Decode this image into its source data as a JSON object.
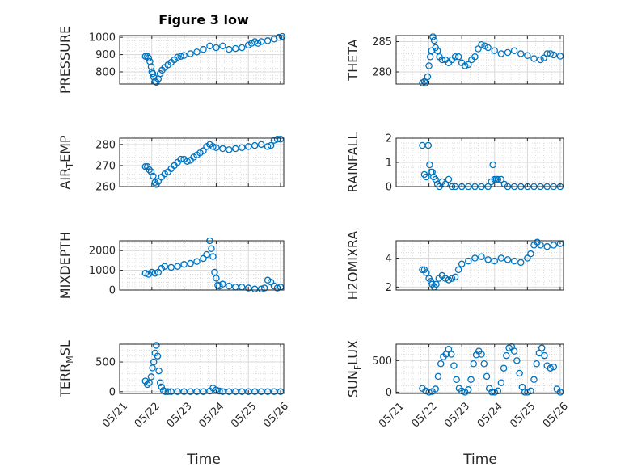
{
  "figure": {
    "title": "Figure 3 low"
  },
  "chart_data": [
    {
      "type": "scatter",
      "title": "Figure 3 low",
      "ylabel": "PRESSURE",
      "ylabel_sub": "",
      "ylim": [
        730,
        1010
      ],
      "yticks": [
        800,
        900,
        1000
      ],
      "ytick_labels": [
        "800",
        "900",
        "1000"
      ],
      "xlim": [
        0,
        5.1
      ],
      "grid": true,
      "x": [
        0.8,
        0.86,
        0.9,
        0.94,
        0.98,
        1.0,
        1.03,
        1.06,
        1.1,
        1.14,
        1.2,
        1.26,
        1.32,
        1.4,
        1.5,
        1.6,
        1.7,
        1.8,
        1.9,
        2.0,
        2.2,
        2.4,
        2.6,
        2.8,
        3.0,
        3.2,
        3.4,
        3.6,
        3.8,
        4.0,
        4.1,
        4.2,
        4.3,
        4.4,
        4.6,
        4.8,
        4.95,
        5.05
      ],
      "y": [
        890,
        890,
        880,
        860,
        830,
        800,
        790,
        770,
        745,
        740,
        760,
        790,
        810,
        825,
        840,
        855,
        870,
        885,
        890,
        895,
        905,
        915,
        930,
        950,
        940,
        950,
        930,
        935,
        940,
        955,
        965,
        975,
        965,
        975,
        980,
        990,
        1000,
        1005
      ]
    },
    {
      "type": "scatter",
      "title": "",
      "ylabel": "THETA",
      "ylabel_sub": "",
      "ylim": [
        278,
        286
      ],
      "yticks": [
        280,
        285
      ],
      "ytick_labels": [
        "280",
        "285"
      ],
      "xlim": [
        0,
        5.1
      ],
      "grid": true,
      "x": [
        0.8,
        0.86,
        0.9,
        0.96,
        1.0,
        1.04,
        1.08,
        1.12,
        1.16,
        1.2,
        1.26,
        1.32,
        1.4,
        1.5,
        1.6,
        1.7,
        1.8,
        1.9,
        2.0,
        2.1,
        2.2,
        2.3,
        2.4,
        2.5,
        2.6,
        2.7,
        2.8,
        3.0,
        3.2,
        3.4,
        3.6,
        3.8,
        4.0,
        4.2,
        4.4,
        4.5,
        4.6,
        4.7,
        4.8,
        5.0
      ],
      "y": [
        278.2,
        278.4,
        278.2,
        279.2,
        281,
        282.5,
        283.5,
        285.8,
        285.2,
        284,
        283.5,
        282.5,
        282,
        282,
        281.5,
        282,
        282.5,
        282.5,
        281.5,
        281,
        281.2,
        282,
        282.5,
        283.8,
        284.5,
        284.3,
        284,
        283.5,
        283,
        283.2,
        283.5,
        283,
        282.7,
        282.2,
        282,
        282.3,
        283,
        283,
        282.8,
        282.6
      ]
    },
    {
      "type": "scatter",
      "title": "",
      "ylabel": "AIR",
      "ylabel_sub": "T",
      "ylabel_suffix": "EMP",
      "ylim": [
        260,
        283
      ],
      "yticks": [
        260,
        270,
        280
      ],
      "ytick_labels": [
        "260",
        "270",
        "280"
      ],
      "xlim": [
        0,
        5.1
      ],
      "grid": true,
      "x": [
        0.8,
        0.86,
        0.92,
        0.98,
        1.04,
        1.1,
        1.14,
        1.2,
        1.3,
        1.4,
        1.5,
        1.6,
        1.7,
        1.8,
        1.9,
        2.0,
        2.1,
        2.2,
        2.3,
        2.4,
        2.5,
        2.6,
        2.7,
        2.8,
        2.9,
        3.0,
        3.2,
        3.4,
        3.6,
        3.8,
        4.0,
        4.2,
        4.4,
        4.6,
        4.7,
        4.8,
        4.9,
        5.0
      ],
      "y": [
        269.5,
        269.5,
        268,
        267,
        265,
        262,
        261,
        262.5,
        264.5,
        266,
        267,
        268.5,
        270,
        271.5,
        273,
        273,
        272,
        272.5,
        274,
        275,
        276,
        277,
        279,
        280,
        279,
        278.5,
        278,
        277.5,
        278,
        278.5,
        279,
        279.5,
        280,
        279,
        279.5,
        282,
        282.5,
        282.5
      ]
    },
    {
      "type": "scatter",
      "title": "",
      "ylabel": "RAINFALL",
      "ylabel_sub": "",
      "ylim": [
        0,
        2
      ],
      "yticks": [
        0,
        1,
        2
      ],
      "ytick_labels": [
        "0",
        "1",
        "2"
      ],
      "xlim": [
        0,
        5.1
      ],
      "grid": true,
      "x": [
        0.8,
        0.86,
        0.92,
        0.98,
        1.02,
        1.06,
        1.1,
        1.14,
        1.2,
        1.26,
        1.32,
        1.4,
        1.5,
        1.6,
        1.7,
        1.8,
        2.0,
        2.2,
        2.4,
        2.6,
        2.8,
        2.9,
        2.95,
        3.0,
        3.05,
        3.1,
        3.2,
        3.3,
        3.4,
        3.6,
        3.8,
        4.0,
        4.2,
        4.4,
        4.6,
        4.8,
        5.0
      ],
      "y": [
        1.7,
        0.5,
        0.4,
        1.7,
        0.9,
        0.6,
        0.6,
        0.4,
        0.3,
        0.1,
        0,
        0.2,
        0.1,
        0.3,
        0,
        0,
        0,
        0,
        0,
        0,
        0,
        0.2,
        0.9,
        0.3,
        0.3,
        0.3,
        0.3,
        0.1,
        0,
        0,
        0,
        0,
        0,
        0,
        0,
        0,
        0
      ]
    },
    {
      "type": "scatter",
      "title": "",
      "ylabel": "MIXDEPTH",
      "ylabel_sub": "",
      "ylim": [
        0,
        2500
      ],
      "yticks": [
        0,
        1000,
        2000
      ],
      "ytick_labels": [
        "0",
        "1000",
        "2000"
      ],
      "xlim": [
        0,
        5.1
      ],
      "grid": true,
      "x": [
        0.8,
        0.9,
        1.0,
        1.1,
        1.2,
        1.3,
        1.4,
        1.6,
        1.8,
        2.0,
        2.2,
        2.4,
        2.6,
        2.7,
        2.8,
        2.85,
        2.9,
        2.95,
        3.0,
        3.05,
        3.1,
        3.2,
        3.4,
        3.6,
        3.8,
        4.0,
        4.2,
        4.4,
        4.5,
        4.6,
        4.7,
        4.8,
        4.9,
        5.0
      ],
      "y": [
        850,
        800,
        900,
        850,
        900,
        1100,
        1200,
        1150,
        1200,
        1300,
        1350,
        1450,
        1600,
        1800,
        2500,
        2100,
        1700,
        900,
        600,
        250,
        200,
        300,
        200,
        150,
        150,
        100,
        50,
        50,
        100,
        500,
        400,
        200,
        100,
        150
      ]
    },
    {
      "type": "scatter",
      "title": "",
      "ylabel": "H2OMIXRA",
      "ylabel_sub": "",
      "ylim": [
        1.8,
        5.2
      ],
      "yticks": [
        2,
        4
      ],
      "ytick_labels": [
        "2",
        "4"
      ],
      "xlim": [
        0,
        5.1
      ],
      "grid": true,
      "x": [
        0.8,
        0.86,
        0.92,
        1.0,
        1.06,
        1.1,
        1.16,
        1.22,
        1.3,
        1.4,
        1.5,
        1.6,
        1.7,
        1.8,
        1.9,
        2.0,
        2.2,
        2.4,
        2.6,
        2.8,
        3.0,
        3.2,
        3.4,
        3.6,
        3.8,
        4.0,
        4.1,
        4.2,
        4.3,
        4.4,
        4.6,
        4.8,
        5.0
      ],
      "y": [
        3.2,
        3.2,
        3.0,
        2.6,
        2.4,
        2.2,
        2.0,
        2.2,
        2.6,
        2.8,
        2.6,
        2.5,
        2.6,
        2.7,
        3.2,
        3.6,
        3.8,
        4.0,
        4.1,
        3.9,
        3.8,
        4.0,
        3.9,
        3.8,
        3.7,
        4.0,
        4.3,
        4.9,
        5.1,
        4.9,
        4.8,
        4.9,
        5.0
      ]
    },
    {
      "type": "scatter",
      "title": "",
      "ylabel": "TERR",
      "ylabel_sub": "M",
      "ylabel_suffix": "SL",
      "ylim": [
        -30,
        800
      ],
      "yticks": [
        0,
        500
      ],
      "ytick_labels": [
        "0",
        "500"
      ],
      "xlim": [
        0,
        5.1
      ],
      "grid": true,
      "x": [
        0.8,
        0.86,
        0.92,
        0.98,
        1.02,
        1.06,
        1.1,
        1.14,
        1.18,
        1.22,
        1.26,
        1.3,
        1.36,
        1.42,
        1.5,
        1.6,
        1.8,
        2.0,
        2.2,
        2.4,
        2.6,
        2.8,
        2.9,
        3.0,
        3.1,
        3.2,
        3.4,
        3.6,
        3.8,
        4.0,
        4.2,
        4.4,
        4.6,
        4.8,
        5.0
      ],
      "y": [
        180,
        120,
        150,
        250,
        400,
        500,
        650,
        780,
        600,
        350,
        150,
        80,
        20,
        0,
        0,
        0,
        0,
        0,
        0,
        0,
        0,
        10,
        60,
        30,
        10,
        0,
        0,
        0,
        0,
        0,
        0,
        0,
        0,
        0,
        0
      ]
    },
    {
      "type": "scatter",
      "title": "",
      "ylabel": "SUN",
      "ylabel_sub": "F",
      "ylabel_suffix": "LUX",
      "ylim": [
        -20,
        760
      ],
      "yticks": [
        0,
        500
      ],
      "ytick_labels": [
        "0",
        "500"
      ],
      "xlim": [
        0,
        5.1
      ],
      "grid": true,
      "x": [
        0.8,
        0.9,
        1.0,
        1.1,
        1.2,
        1.28,
        1.36,
        1.44,
        1.52,
        1.6,
        1.68,
        1.76,
        1.84,
        1.92,
        2.0,
        2.1,
        2.2,
        2.28,
        2.36,
        2.44,
        2.52,
        2.6,
        2.68,
        2.76,
        2.84,
        2.92,
        3.0,
        3.1,
        3.2,
        3.28,
        3.36,
        3.44,
        3.52,
        3.6,
        3.68,
        3.76,
        3.84,
        3.92,
        4.0,
        4.1,
        4.2,
        4.28,
        4.36,
        4.44,
        4.52,
        4.6,
        4.7,
        4.8,
        4.9,
        5.0
      ],
      "y": [
        60,
        20,
        0,
        10,
        50,
        250,
        450,
        560,
        600,
        680,
        600,
        420,
        200,
        60,
        20,
        0,
        40,
        200,
        450,
        590,
        650,
        600,
        450,
        250,
        60,
        0,
        0,
        20,
        150,
        380,
        580,
        700,
        720,
        650,
        500,
        300,
        80,
        0,
        0,
        20,
        200,
        450,
        620,
        700,
        580,
        420,
        380,
        400,
        50,
        0
      ]
    }
  ],
  "shared_x": {
    "label": "Time",
    "ticks": [
      0,
      1,
      2,
      3,
      4,
      5
    ],
    "tick_labels": [
      "05/21",
      "05/22",
      "05/23",
      "05/24",
      "05/25",
      "05/26"
    ]
  },
  "colors": {
    "marker": "#0072BD",
    "axis": "#262626",
    "grid_major": "#d9d9d9",
    "grid_minor": "#cfcfcf"
  }
}
